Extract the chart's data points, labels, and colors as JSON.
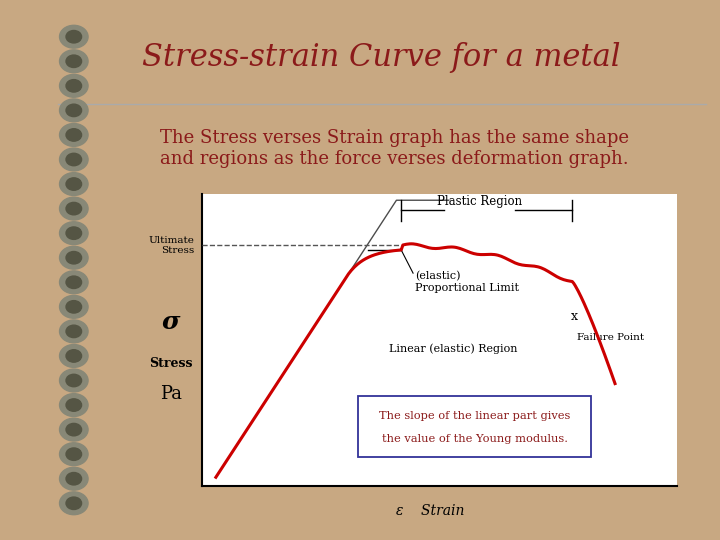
{
  "title": "Stress-strain Curve for a metal",
  "subtitle_line1": "The Stress verses Strain graph has the same shape",
  "subtitle_line2": "and regions as the force verses deformation graph.",
  "background_color": "#c8a882",
  "page_bg_color": "#e8dcc8",
  "graph_bg_color": "#ffffff",
  "title_color": "#8b1a1a",
  "subtitle_color": "#8b1a1a",
  "curve_color": "#cc0000",
  "annotation_color": "#000000",
  "dashed_color": "#555555",
  "sigma_label": "σ",
  "stress_label": "Stress",
  "pa_label": "Pa",
  "strain_label": "Strain",
  "epsilon_label": "ε",
  "ultimate_stress_label": "Ultimate\nStress",
  "plastic_region_label": "Plastic Region",
  "elastic_proportional_label": "(elastic)\nProportional Limit",
  "failure_point_label": "Failure Point",
  "linear_elastic_label": "Linear (elastic) Region",
  "slope_note_line1": "The slope of the linear part gives",
  "slope_note_line2": "the value of the Young modulus.",
  "title_fontsize": 22,
  "subtitle_fontsize": 13,
  "annotation_fontsize": 9,
  "spiral_color_outer": "#888877",
  "spiral_color_inner": "#555544",
  "line_color_sep": "#aaaaaa"
}
